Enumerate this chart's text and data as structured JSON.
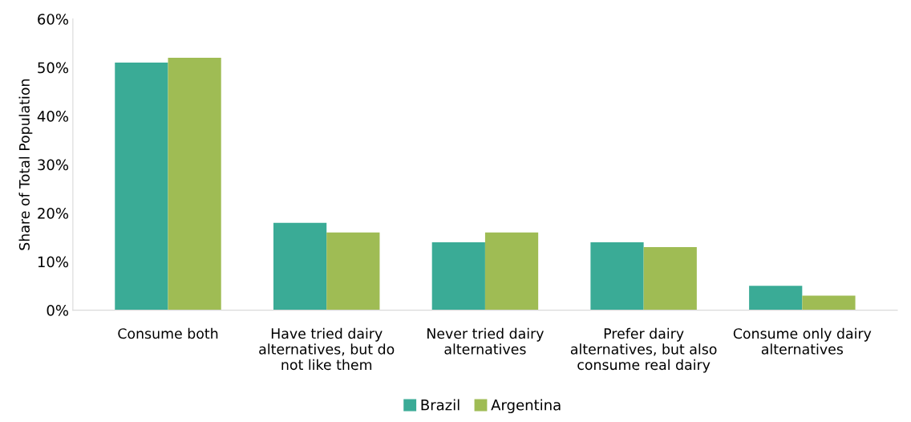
{
  "chart_data": {
    "type": "bar",
    "ylabel": "Share of Total Population",
    "categories": [
      "Consume both",
      "Have tried dairy\nalternatives, but do\nnot like them",
      "Never tried dairy\nalternatives",
      "Prefer dairy\nalternatives, but also\nconsume real dairy",
      "Consume only dairy\nalternatives"
    ],
    "series": [
      {
        "name": "Brazil",
        "color": "#3aab96",
        "values": [
          51,
          18,
          14,
          14,
          5
        ]
      },
      {
        "name": "Argentina",
        "color": "#9fbc54",
        "values": [
          52,
          16,
          16,
          13,
          3
        ]
      }
    ],
    "ylim": [
      0,
      60
    ],
    "yticks": [
      {
        "value": 0,
        "label": "0%"
      },
      {
        "value": 10,
        "label": "10%"
      },
      {
        "value": 20,
        "label": "20%"
      },
      {
        "value": 30,
        "label": "30%"
      },
      {
        "value": 40,
        "label": "40%"
      },
      {
        "value": 50,
        "label": "50%"
      },
      {
        "value": 60,
        "label": "60%"
      }
    ],
    "grid": false,
    "legend": "bottom"
  }
}
